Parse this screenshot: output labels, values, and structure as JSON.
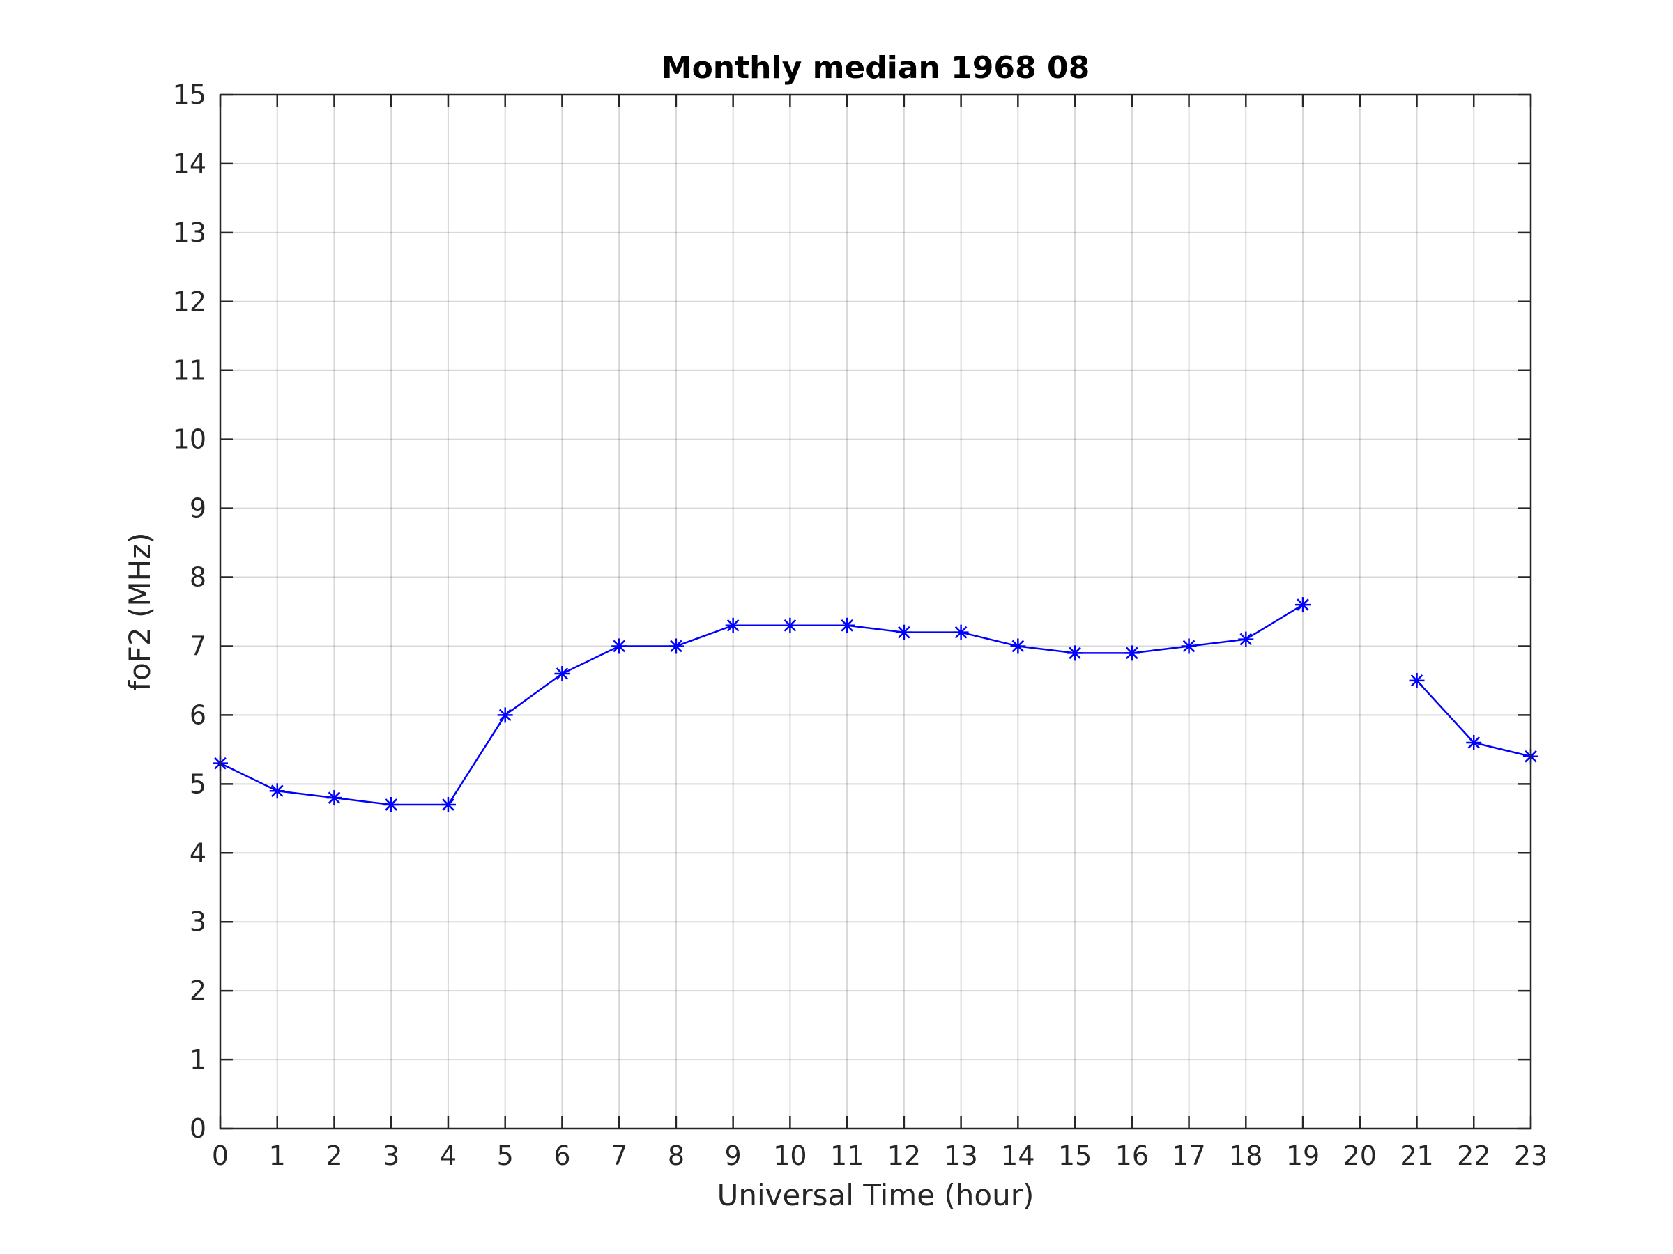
{
  "chart_data": {
    "type": "line",
    "title": "Monthly median 1968 08",
    "xlabel": "Universal Time (hour)",
    "ylabel": "foF2 (MHz)",
    "xlim": [
      0,
      23
    ],
    "ylim": [
      0,
      15
    ],
    "xticks": [
      0,
      1,
      2,
      3,
      4,
      5,
      6,
      7,
      8,
      9,
      10,
      11,
      12,
      13,
      14,
      15,
      16,
      17,
      18,
      19,
      20,
      21,
      22,
      23
    ],
    "yticks": [
      0,
      1,
      2,
      3,
      4,
      5,
      6,
      7,
      8,
      9,
      10,
      11,
      12,
      13,
      14,
      15
    ],
    "grid": true,
    "series": [
      {
        "x": [
          0,
          1,
          2,
          3,
          4,
          5,
          6,
          7,
          8,
          9,
          10,
          11,
          12,
          13,
          14,
          15,
          16,
          17,
          18,
          19,
          20,
          21,
          22,
          23
        ],
        "y": [
          5.3,
          4.9,
          4.8,
          4.7,
          4.7,
          6.0,
          6.6,
          7.0,
          7.0,
          7.3,
          7.3,
          7.3,
          7.2,
          7.2,
          7.0,
          6.9,
          6.9,
          7.0,
          7.1,
          7.6,
          null,
          6.5,
          5.6,
          5.4
        ],
        "color": "#0000ff",
        "marker": "asterisk"
      }
    ]
  }
}
